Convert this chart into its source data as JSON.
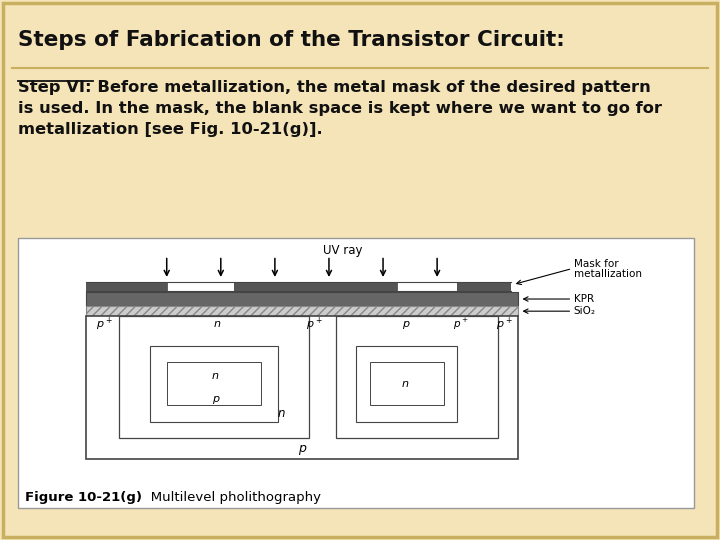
{
  "title": "Steps of Fabrication of the Transistor Circuit:",
  "bg_color": "#F5E4B8",
  "title_color": "#111111",
  "step_text": "Step VI: Before metallization, the metal mask of the desired pattern\nis used. In the mask, the blank space is kept where we want to go for\nmetallization [see Fig. 10-21(g)].",
  "figure_caption_bold": "Figure 10-21(g)",
  "figure_caption_rest": "   Multilevel pholithography",
  "uv_ray_label": "UV ray",
  "mask_label1": "Mask for",
  "mask_label2": "metallization",
  "kpr_label": "KPR",
  "sio2_label": "SiO₂",
  "p_substrate": "p",
  "diagram_bg": "#ffffff",
  "border_color": "#C8B060"
}
